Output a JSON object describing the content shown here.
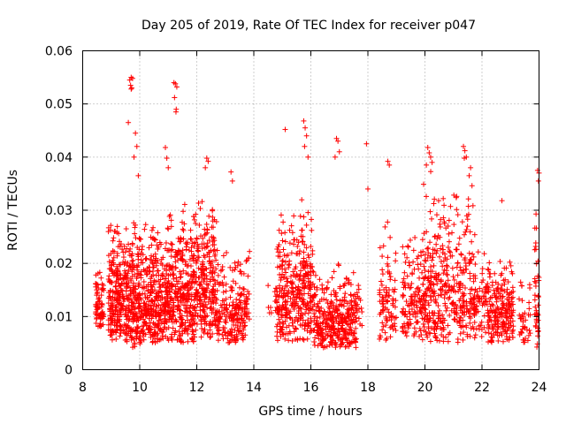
{
  "chart_data": {
    "type": "scatter",
    "title": "Day 205 of 2019, Rate Of TEC Index for receiver p047",
    "xlabel": "GPS time / hours",
    "ylabel": "ROTI / TECUs",
    "xlim": [
      8,
      24
    ],
    "ylim": [
      0,
      0.06
    ],
    "xticks": [
      "8",
      "10",
      "12",
      "14",
      "16",
      "18",
      "20",
      "22",
      "24"
    ],
    "yticks": [
      "0",
      "0.01",
      "0.02",
      "0.03",
      "0.04",
      "0.05",
      "0.06"
    ],
    "grid": true,
    "marker": "+",
    "color": "#ff0000",
    "series": [
      {
        "name": "ROTI",
        "clusters": [
          {
            "x": [
              8.45,
              8.75
            ],
            "y": [
              0.008,
              0.02
            ],
            "n": 70
          },
          {
            "x": [
              8.9,
              9.6
            ],
            "y": [
              0.005,
              0.03
            ],
            "n": 260
          },
          {
            "x": [
              9.6,
              10.2
            ],
            "y": [
              0.004,
              0.03
            ],
            "n": 220
          },
          {
            "x": [
              10.2,
              11.0
            ],
            "y": [
              0.005,
              0.03
            ],
            "n": 280
          },
          {
            "x": [
              11.0,
              11.9
            ],
            "y": [
              0.005,
              0.032
            ],
            "n": 320
          },
          {
            "x": [
              11.9,
              12.7
            ],
            "y": [
              0.006,
              0.034
            ],
            "n": 260
          },
          {
            "x": [
              12.7,
              13.7
            ],
            "y": [
              0.005,
              0.024
            ],
            "n": 200
          },
          {
            "x": [
              13.7,
              13.85
            ],
            "y": [
              0.008,
              0.025
            ],
            "n": 20
          },
          {
            "x": [
              14.5,
              14.8
            ],
            "y": [
              0.01,
              0.02
            ],
            "n": 10
          },
          {
            "x": [
              14.8,
              15.5
            ],
            "y": [
              0.005,
              0.03
            ],
            "n": 190
          },
          {
            "x": [
              15.5,
              16.1
            ],
            "y": [
              0.005,
              0.035
            ],
            "n": 170
          },
          {
            "x": [
              16.1,
              17.0
            ],
            "y": [
              0.004,
              0.02
            ],
            "n": 200
          },
          {
            "x": [
              17.0,
              17.6
            ],
            "y": [
              0.004,
              0.02
            ],
            "n": 140
          },
          {
            "x": [
              17.6,
              17.8
            ],
            "y": [
              0.008,
              0.018
            ],
            "n": 15
          },
          {
            "x": [
              18.4,
              19.0
            ],
            "y": [
              0.005,
              0.03
            ],
            "n": 90
          },
          {
            "x": [
              19.2,
              19.9
            ],
            "y": [
              0.006,
              0.026
            ],
            "n": 120
          },
          {
            "x": [
              19.9,
              20.8
            ],
            "y": [
              0.005,
              0.038
            ],
            "n": 230
          },
          {
            "x": [
              20.8,
              21.8
            ],
            "y": [
              0.005,
              0.035
            ],
            "n": 210
          },
          {
            "x": [
              21.8,
              22.2
            ],
            "y": [
              0.006,
              0.025
            ],
            "n": 50
          },
          {
            "x": [
              22.2,
              23.1
            ],
            "y": [
              0.005,
              0.022
            ],
            "n": 210
          },
          {
            "x": [
              23.3,
              23.7
            ],
            "y": [
              0.005,
              0.018
            ],
            "n": 40
          },
          {
            "x": [
              23.85,
              24.0
            ],
            "y": [
              0.004,
              0.037
            ],
            "n": 40
          }
        ],
        "x": [
          9.65,
          9.7,
          9.75,
          9.68,
          9.72,
          9.7,
          9.6,
          9.85,
          9.9,
          9.8,
          9.95,
          11.2,
          11.25,
          11.3,
          11.22,
          11.28,
          11.27,
          10.9,
          10.95,
          11.0,
          12.35,
          12.4,
          12.3,
          13.2,
          13.25,
          15.1,
          15.75,
          15.8,
          15.85,
          15.78,
          15.9,
          16.9,
          16.95,
          17.0,
          16.85,
          17.95,
          18.0,
          20.1,
          20.15,
          20.2,
          20.05,
          20.25,
          21.35,
          21.4,
          21.45,
          21.38,
          21.6,
          21.55,
          22.7,
          23.95,
          24.0,
          23.98,
          18.7,
          18.75
        ],
        "y": [
          0.0545,
          0.055,
          0.0548,
          0.0535,
          0.053,
          0.0528,
          0.0465,
          0.0445,
          0.042,
          0.04,
          0.0365,
          0.054,
          0.0538,
          0.0532,
          0.0512,
          0.049,
          0.0485,
          0.0418,
          0.0398,
          0.038,
          0.0398,
          0.0392,
          0.038,
          0.0372,
          0.0355,
          0.0452,
          0.0468,
          0.0455,
          0.044,
          0.042,
          0.04,
          0.0435,
          0.043,
          0.041,
          0.04,
          0.0425,
          0.034,
          0.0418,
          0.0408,
          0.04,
          0.0385,
          0.039,
          0.042,
          0.0412,
          0.04,
          0.0398,
          0.038,
          0.0365,
          0.0318,
          0.0375,
          0.037,
          0.0355,
          0.0392,
          0.0385
        ]
      }
    ]
  }
}
